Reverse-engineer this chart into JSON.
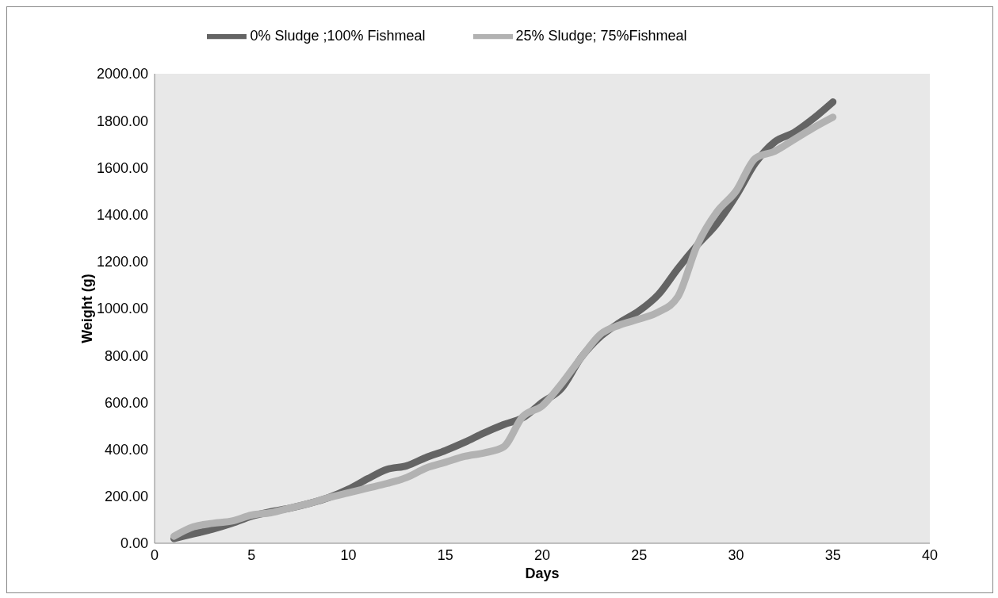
{
  "chart_data": {
    "type": "line",
    "xlabel": "Days",
    "ylabel": "Weight (g)",
    "x": [
      1,
      2,
      3,
      4,
      5,
      6,
      7,
      8,
      9,
      10,
      11,
      12,
      13,
      14,
      15,
      16,
      17,
      18,
      19,
      20,
      21,
      22,
      23,
      24,
      25,
      26,
      27,
      28,
      29,
      30,
      31,
      32,
      33,
      34,
      35
    ],
    "series": [
      {
        "name": "0% Sludge ;100% Fishmeal",
        "color": "#646464",
        "values": [
          20,
          40,
          60,
          85,
          115,
          135,
          150,
          170,
          195,
          230,
          275,
          315,
          330,
          365,
          395,
          430,
          470,
          505,
          535,
          600,
          660,
          790,
          880,
          940,
          990,
          1060,
          1170,
          1270,
          1360,
          1480,
          1620,
          1710,
          1750,
          1810,
          1880
        ]
      },
      {
        "name": "25% Sludge; 75%Fishmeal",
        "color": "#b2b2b2",
        "values": [
          30,
          70,
          85,
          95,
          120,
          130,
          150,
          170,
          195,
          215,
          235,
          255,
          280,
          320,
          345,
          370,
          385,
          410,
          540,
          585,
          680,
          790,
          890,
          930,
          955,
          985,
          1050,
          1270,
          1410,
          1500,
          1640,
          1670,
          1720,
          1770,
          1815
        ]
      }
    ],
    "xlim": [
      0,
      40
    ],
    "xticks": [
      0,
      5,
      10,
      15,
      20,
      25,
      30,
      35,
      40
    ],
    "ylim": [
      0,
      2000
    ],
    "yticks": [
      {
        "value": 0,
        "label": "0.00"
      },
      {
        "value": 200,
        "label": "200.00"
      },
      {
        "value": 400,
        "label": "400.00"
      },
      {
        "value": 600,
        "label": "600.00"
      },
      {
        "value": 800,
        "label": "800.00"
      },
      {
        "value": 1000,
        "label": "1000.00"
      },
      {
        "value": 1200,
        "label": "1200.00"
      },
      {
        "value": 1400,
        "label": "1400.00"
      },
      {
        "value": 1600,
        "label": "1600.00"
      },
      {
        "value": 1800,
        "label": "1800.00"
      },
      {
        "value": 2000,
        "label": "2000.00"
      }
    ],
    "legend": "top",
    "marker": "none",
    "line_style": "solid"
  }
}
